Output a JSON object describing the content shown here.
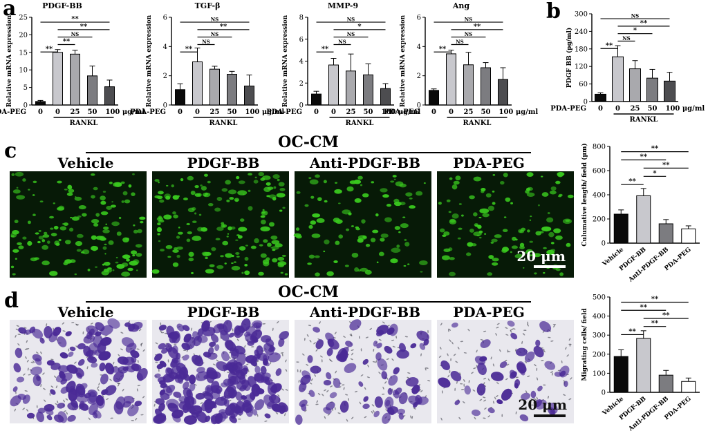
{
  "panel_labels": [
    "a",
    "b",
    "c",
    "d"
  ],
  "colors": {
    "bar_fills": [
      "#0a0a0a",
      "#c8c8cd",
      "#a9a9ad",
      "#7c7c80",
      "#4d4d50"
    ],
    "fluor_bg": "#071a07",
    "fluor_cell": "#39c81e",
    "stain_bg": "#e9e8ee",
    "stain_cell": "#4a2a96",
    "scale_bar": "#ffffff"
  },
  "axis_common": {
    "x_treatment": "PDA-PEG",
    "doses": [
      "0",
      "0",
      "25",
      "50",
      "100 μg/ml"
    ],
    "group": "RANKL"
  },
  "chart_data": [
    {
      "type": "bar",
      "title": "PDGF-BB",
      "ylabel": "Relative mRNA expression",
      "ylim": [
        0,
        25
      ],
      "yticks": [
        "0",
        "5",
        "10",
        "15",
        "20",
        "25"
      ],
      "values": [
        1.0,
        15.0,
        14.5,
        8.3,
        5.2
      ],
      "errors": [
        0.3,
        0.8,
        1.1,
        2.8,
        1.9
      ],
      "sig": [
        "**",
        "**",
        "NS",
        "**",
        "**"
      ]
    },
    {
      "type": "bar",
      "title": "TGF-β",
      "ylabel": "Relative mRNA expression",
      "ylim": [
        0,
        6
      ],
      "yticks": [
        "0",
        "2",
        "4",
        "6"
      ],
      "values": [
        1.05,
        2.95,
        2.45,
        2.1,
        1.3
      ],
      "errors": [
        0.4,
        0.95,
        0.2,
        0.2,
        0.75
      ],
      "sig": [
        "**",
        "NS",
        "NS",
        "**",
        "NS"
      ]
    },
    {
      "type": "bar",
      "title": "MMP-9",
      "ylabel": "Relative mRNA expression",
      "ylim": [
        0,
        8
      ],
      "yticks": [
        "0",
        "2",
        "4",
        "6",
        "8"
      ],
      "values": [
        1.0,
        3.65,
        3.1,
        2.75,
        1.5
      ],
      "errors": [
        0.25,
        0.6,
        1.55,
        1.0,
        0.45
      ],
      "sig": [
        "**",
        "NS",
        "NS",
        "*",
        "NS"
      ]
    },
    {
      "type": "bar",
      "title": "Ang",
      "ylabel": "Relative mRNA expression",
      "ylim": [
        0,
        6
      ],
      "yticks": [
        "0",
        "2",
        "4",
        "6"
      ],
      "values": [
        1.0,
        3.5,
        2.75,
        2.55,
        1.75
      ],
      "errors": [
        0.1,
        0.25,
        0.85,
        0.35,
        0.8
      ],
      "sig": [
        "**",
        "NS",
        "NS",
        "**",
        "NS"
      ]
    },
    {
      "type": "bar",
      "title": "",
      "ylabel": "PDGF BB (pg/ml)",
      "ylim": [
        0,
        300
      ],
      "yticks": [
        "0",
        "60",
        "120",
        "180",
        "240",
        "300"
      ],
      "values": [
        25,
        153,
        112,
        80,
        70
      ],
      "errors": [
        5,
        38,
        28,
        30,
        30
      ],
      "sig": [
        "**",
        "NS",
        "*",
        "**",
        "NS"
      ]
    },
    {
      "type": "bar",
      "title": "",
      "ylabel": "Culumative length/ field (μm)",
      "categories": [
        "Vehicle",
        "PDGF-BB",
        "Anti-PDGF-BB",
        "PDA-PEG"
      ],
      "ylim": [
        0,
        800
      ],
      "yticks": [
        "0",
        "200",
        "400",
        "600",
        "800"
      ],
      "values": [
        240,
        392,
        160,
        118
      ],
      "errors": [
        35,
        60,
        35,
        25
      ],
      "sig": [
        "**",
        "*",
        "**",
        "**",
        "**"
      ]
    },
    {
      "type": "bar",
      "title": "",
      "ylabel": "Migrating cells/ field",
      "categories": [
        "Vehicle",
        "PDGF-BB",
        "Anti-PDGF-BB",
        "PDA-PEG"
      ],
      "ylim": [
        0,
        500
      ],
      "yticks": [
        "0",
        "100",
        "200",
        "300",
        "400",
        "500"
      ],
      "values": [
        188,
        283,
        90,
        57
      ],
      "errors": [
        35,
        40,
        25,
        18
      ],
      "sig": [
        "**",
        "**",
        "**",
        "**",
        "**"
      ]
    }
  ],
  "micrographs": {
    "c": {
      "header": "OC-CM",
      "labels": [
        "Vehicle",
        "PDGF-BB",
        "Anti-PDGF-BB",
        "PDA-PEG"
      ],
      "scale": "20 μm"
    },
    "d": {
      "header": "OC-CM",
      "labels": [
        "Vehicle",
        "PDGF-BB",
        "Anti-PDGF-BB",
        "PDA-PEG"
      ],
      "scale": "20 μm"
    }
  }
}
